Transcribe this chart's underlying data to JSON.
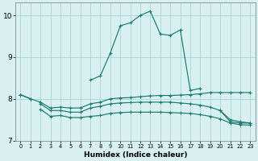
{
  "xlabel": "Humidex (Indice chaleur)",
  "bg_color": "#d9f0f0",
  "grid_color": "#aad4d4",
  "line_color": "#1a7a6e",
  "xlim": [
    -0.5,
    23.5
  ],
  "ylim": [
    7.0,
    10.3
  ],
  "yticks": [
    7,
    8,
    9,
    10
  ],
  "xticks": [
    0,
    1,
    2,
    3,
    4,
    5,
    6,
    7,
    8,
    9,
    10,
    11,
    12,
    13,
    14,
    15,
    16,
    17,
    18,
    19,
    20,
    21,
    22,
    23
  ],
  "series": [
    {
      "x": [
        0,
        1,
        2,
        3,
        4,
        5,
        6,
        7,
        8,
        9,
        10,
        11,
        12,
        13,
        14,
        15,
        16,
        17,
        18,
        19,
        20,
        21,
        22,
        23
      ],
      "y": [
        8.1,
        8.0,
        null,
        null,
        null,
        null,
        null,
        8.45,
        8.55,
        9.1,
        9.75,
        9.82,
        10.0,
        10.1,
        9.55,
        9.52,
        9.65,
        8.2,
        8.25,
        null,
        7.72,
        7.45,
        7.42,
        7.42
      ]
    },
    {
      "x": [
        0,
        1,
        2,
        3,
        4,
        5,
        6,
        7,
        8,
        9,
        10,
        11,
        12,
        13,
        14,
        15,
        16,
        17,
        18,
        19,
        20,
        21,
        22,
        23
      ],
      "y": [
        8.1,
        8.0,
        7.92,
        7.78,
        7.8,
        7.78,
        7.78,
        7.88,
        7.92,
        8.0,
        8.02,
        8.03,
        8.05,
        8.07,
        8.08,
        8.08,
        8.09,
        8.1,
        8.12,
        8.15,
        8.15,
        8.15,
        8.15,
        8.15
      ]
    },
    {
      "x": [
        2,
        3,
        4,
        5,
        6,
        7,
        8,
        9,
        10,
        11,
        12,
        13,
        14,
        15,
        16,
        17,
        18,
        19,
        20,
        21,
        22,
        23
      ],
      "y": [
        7.88,
        7.72,
        7.72,
        7.68,
        7.68,
        7.78,
        7.82,
        7.88,
        7.9,
        7.91,
        7.92,
        7.92,
        7.92,
        7.92,
        7.9,
        7.88,
        7.85,
        7.8,
        7.72,
        7.5,
        7.45,
        7.42
      ]
    },
    {
      "x": [
        2,
        3,
        4,
        5,
        6,
        7,
        8,
        9,
        10,
        11,
        12,
        13,
        14,
        15,
        16,
        17,
        18,
        19,
        20,
        21,
        22,
        23
      ],
      "y": [
        7.75,
        7.58,
        7.6,
        7.55,
        7.55,
        7.58,
        7.6,
        7.65,
        7.67,
        7.68,
        7.68,
        7.68,
        7.68,
        7.67,
        7.66,
        7.65,
        7.62,
        7.58,
        7.52,
        7.42,
        7.38,
        7.37
      ]
    }
  ]
}
